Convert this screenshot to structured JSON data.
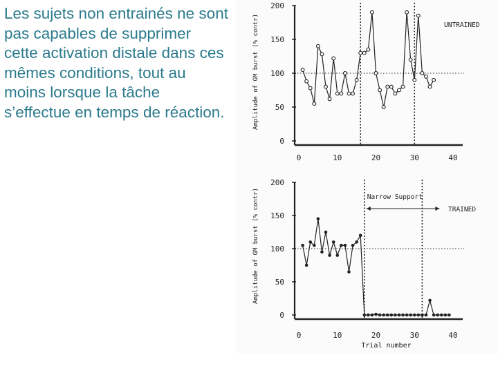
{
  "slide": {
    "text": "Les sujets non entrainés ne sont pas capables de supprimer cette activation distale dans ces mêmes conditions, tout au moins lorsque la tâche s’effectue en temps de réaction."
  },
  "colors": {
    "text": "#2b7a8c",
    "ink": "#222222"
  },
  "chart_data": [
    {
      "type": "line",
      "title": "UNTRAINED",
      "ylabel": "Amplitude of GM burst (% contr)",
      "xlabel": "",
      "xlim": [
        0,
        40
      ],
      "ylim": [
        0,
        200
      ],
      "xticks": [
        0,
        10,
        20,
        30,
        40
      ],
      "yticks": [
        0,
        50,
        100,
        150,
        200
      ],
      "reference_line_y": 100,
      "vertical_markers_x": [
        16,
        30
      ],
      "series": [
        {
          "x": [
            1,
            2,
            3,
            4,
            5,
            6,
            7,
            8,
            9,
            10,
            11,
            12,
            13,
            14,
            15,
            16,
            17,
            18,
            19,
            20,
            21,
            22,
            23,
            24,
            25,
            26,
            27,
            28,
            29,
            30,
            31,
            32,
            33,
            34,
            35
          ],
          "values": [
            105,
            88,
            78,
            55,
            140,
            128,
            80,
            62,
            122,
            70,
            70,
            100,
            70,
            70,
            90,
            130,
            130,
            135,
            190,
            100,
            75,
            50,
            80,
            80,
            70,
            75,
            80,
            190,
            120,
            90,
            185,
            100,
            95,
            80,
            90
          ]
        }
      ]
    },
    {
      "type": "line",
      "title": "TRAINED",
      "ylabel": "Amplitude of GM burst (% contr)",
      "xlabel": "Trial number",
      "xlim": [
        0,
        40
      ],
      "ylim": [
        0,
        200
      ],
      "xticks": [
        0,
        10,
        20,
        30,
        40
      ],
      "yticks": [
        0,
        50,
        100,
        150,
        200
      ],
      "reference_line_y": 100,
      "vertical_markers_x": [
        17,
        32
      ],
      "annotations": [
        {
          "text": "Narrow Support"
        }
      ],
      "series": [
        {
          "x": [
            1,
            2,
            3,
            4,
            5,
            6,
            7,
            8,
            9,
            10,
            11,
            12,
            13,
            14,
            15,
            16,
            17,
            18,
            19,
            20,
            21,
            22,
            23,
            24,
            25,
            26,
            27,
            28,
            29,
            30,
            31,
            32,
            33,
            34,
            35,
            36,
            37,
            38,
            39
          ],
          "values": [
            105,
            75,
            110,
            105,
            145,
            95,
            125,
            90,
            110,
            90,
            105,
            105,
            65,
            105,
            110,
            120,
            0,
            0,
            0,
            1,
            0,
            0,
            0,
            0,
            0,
            0,
            0,
            0,
            0,
            0,
            0,
            0,
            0,
            22,
            0,
            0,
            0,
            0,
            0
          ]
        }
      ]
    }
  ]
}
